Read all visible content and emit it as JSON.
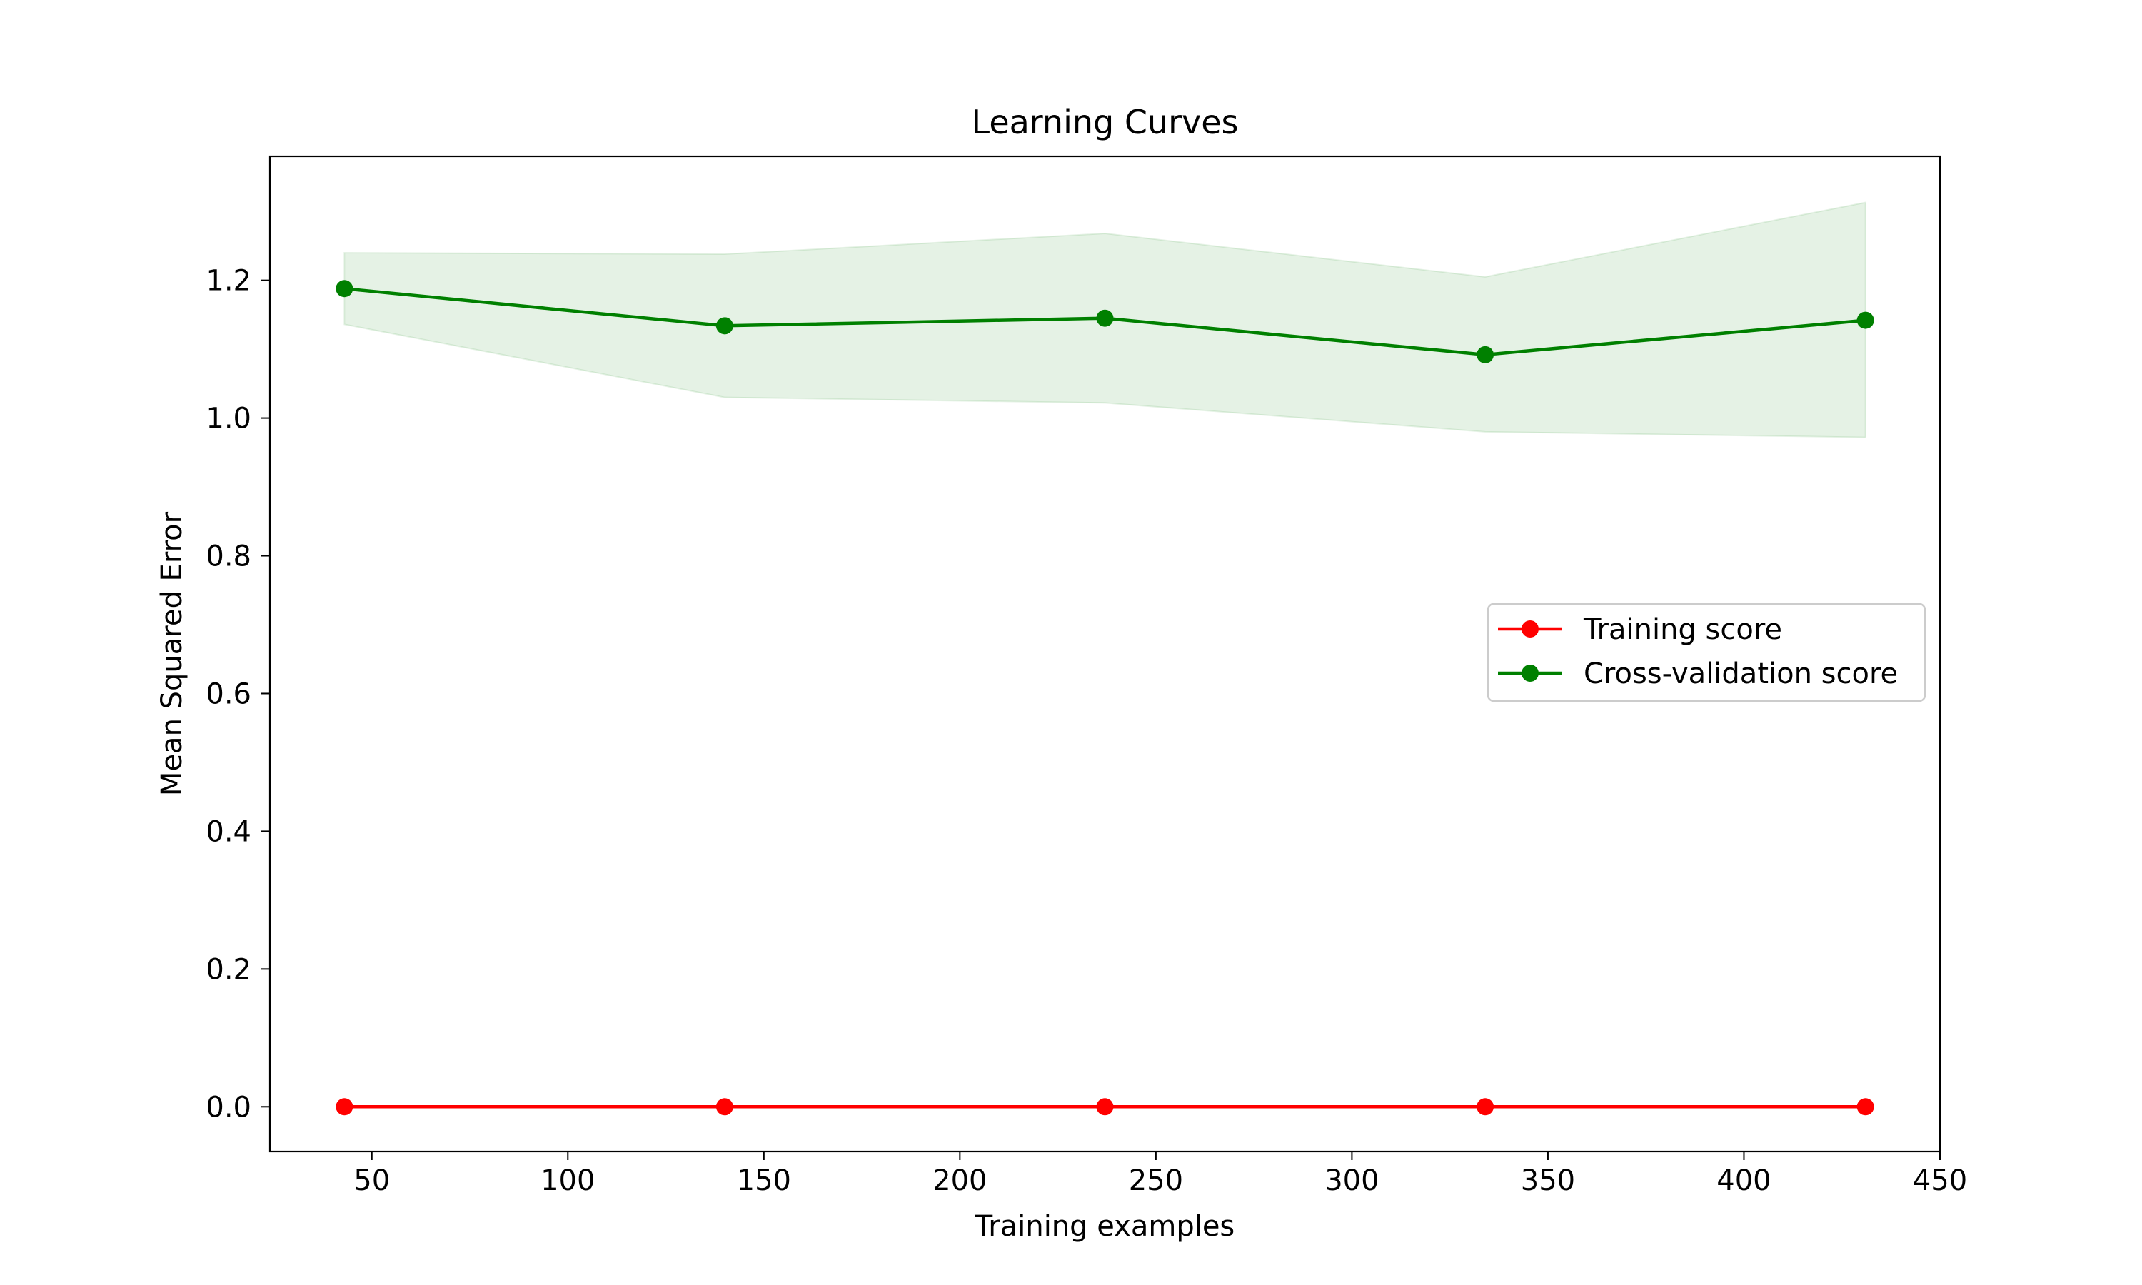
{
  "chart_data": {
    "type": "line",
    "title": "Learning Curves",
    "xlabel": "Training examples",
    "ylabel": "Mean Squared Error",
    "x": [
      43,
      140,
      237,
      334,
      431
    ],
    "xlim": [
      24,
      450
    ],
    "ylim": [
      -0.065,
      1.38
    ],
    "xticks": [
      50,
      100,
      150,
      200,
      250,
      300,
      350,
      400,
      450
    ],
    "xtick_labels": [
      "50",
      "100",
      "150",
      "200",
      "250",
      "300",
      "350",
      "400",
      "450"
    ],
    "yticks": [
      0.0,
      0.2,
      0.4,
      0.6,
      0.8,
      1.0,
      1.2
    ],
    "ytick_labels": [
      "0.0",
      "0.2",
      "0.4",
      "0.6",
      "0.8",
      "1.0",
      "1.2"
    ],
    "grid": false,
    "legend_position": "center-right",
    "series": [
      {
        "name": "Training score",
        "color": "#ff0000",
        "values": [
          0.0,
          0.0,
          0.0,
          0.0,
          0.0
        ],
        "band_lower": [
          0.0,
          0.0,
          0.0,
          0.0,
          0.0
        ],
        "band_upper": [
          0.0,
          0.0,
          0.0,
          0.0,
          0.0
        ]
      },
      {
        "name": "Cross-validation score",
        "color": "#008000",
        "values": [
          1.188,
          1.134,
          1.145,
          1.092,
          1.142
        ],
        "band_lower": [
          1.136,
          1.03,
          1.022,
          0.98,
          0.972
        ],
        "band_upper": [
          1.24,
          1.238,
          1.268,
          1.205,
          1.313
        ]
      }
    ]
  }
}
